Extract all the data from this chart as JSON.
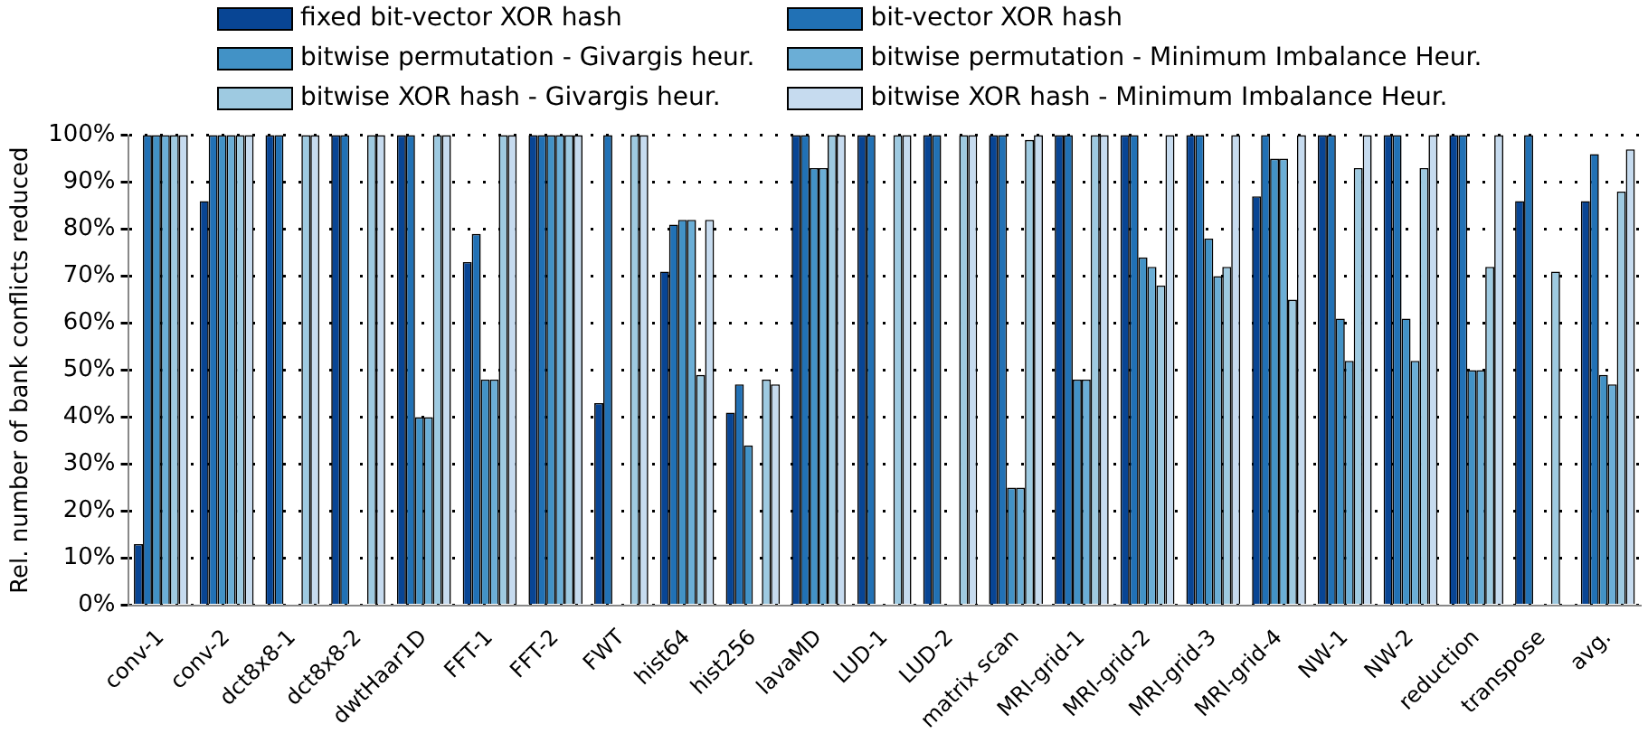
{
  "chart_data": {
    "type": "bar",
    "ylabel": "Rel. number of bank conflicts reduced",
    "categories": [
      "conv-1",
      "conv-2",
      "dct8x8-1",
      "dct8x8-2",
      "dwtHaar1D",
      "FFT-1",
      "FFT-2",
      "FWT",
      "hist64",
      "hist256",
      "lavaMD",
      "LUD-1",
      "LUD-2",
      "matrix scan",
      "MRI-grid-1",
      "MRI-grid-2",
      "MRI-grid-3",
      "MRI-grid-4",
      "NW-1",
      "NW-2",
      "reduction",
      "transpose",
      "avg."
    ],
    "series": [
      {
        "name": "fixed bit-vector XOR hash",
        "color": "#084594",
        "values": [
          13,
          86,
          100,
          100,
          100,
          73,
          100,
          43,
          71,
          41,
          100,
          100,
          100,
          100,
          100,
          100,
          100,
          87,
          100,
          100,
          100,
          86,
          86
        ]
      },
      {
        "name": "bit-vector XOR hash",
        "color": "#2171b5",
        "values": [
          100,
          100,
          100,
          100,
          100,
          79,
          100,
          100,
          81,
          47,
          100,
          100,
          100,
          100,
          100,
          100,
          100,
          100,
          100,
          100,
          100,
          100,
          96
        ]
      },
      {
        "name": "bitwise permutation - Givargis heur.",
        "color": "#4292c6",
        "values": [
          100,
          100,
          0,
          0,
          40,
          48,
          100,
          0,
          82,
          34,
          93,
          0,
          0,
          25,
          48,
          74,
          78,
          95,
          61,
          61,
          50,
          0,
          49
        ]
      },
      {
        "name": "bitwise permutation - Minimum Imbalance Heur.",
        "color": "#6baed6",
        "values": [
          100,
          100,
          0,
          0,
          40,
          48,
          100,
          0,
          82,
          0,
          93,
          0,
          0,
          25,
          48,
          72,
          70,
          95,
          52,
          52,
          50,
          0,
          47
        ]
      },
      {
        "name": "bitwise XOR hash - Givargis heur.",
        "color": "#9ecae1",
        "values": [
          100,
          100,
          100,
          100,
          100,
          100,
          100,
          100,
          49,
          48,
          100,
          100,
          100,
          99,
          100,
          68,
          72,
          65,
          93,
          93,
          72,
          71,
          88
        ]
      },
      {
        "name": "bitwise XOR hash - Minimum Imbalance Heur.",
        "color": "#c6dbef",
        "values": [
          100,
          100,
          100,
          100,
          100,
          100,
          100,
          100,
          82,
          47,
          100,
          100,
          100,
          100,
          100,
          100,
          100,
          100,
          100,
          100,
          100,
          0,
          97
        ]
      }
    ],
    "ylim": [
      0,
      100
    ],
    "yticks": [
      {
        "value": 0,
        "label": "0%"
      },
      {
        "value": 10,
        "label": "10%"
      },
      {
        "value": 20,
        "label": "20%"
      },
      {
        "value": 30,
        "label": "30%"
      },
      {
        "value": 40,
        "label": "40%"
      },
      {
        "value": 50,
        "label": "50%"
      },
      {
        "value": 60,
        "label": "60%"
      },
      {
        "value": 70,
        "label": "70%"
      },
      {
        "value": 80,
        "label": "80%"
      },
      {
        "value": 90,
        "label": "90%"
      },
      {
        "value": 100,
        "label": "100%"
      }
    ],
    "grid": "y",
    "legend": "top"
  }
}
